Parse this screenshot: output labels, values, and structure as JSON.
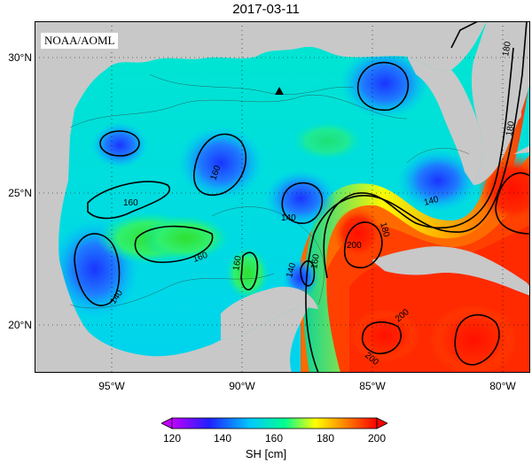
{
  "title": "2017-03-11",
  "credit": "NOAA/AOML",
  "lat_labels": [
    "30°N",
    "25°N",
    "20°N"
  ],
  "lon_labels": [
    "95°W",
    "90°W",
    "85°W",
    "80°W"
  ],
  "contour_labels": [
    "140",
    "140",
    "140",
    "140",
    "160",
    "160",
    "160",
    "160",
    "160",
    "180",
    "180",
    "180",
    "200",
    "200",
    "200"
  ],
  "colorbar": {
    "title": "SH [cm]",
    "ticks": [
      "120",
      "140",
      "160",
      "180",
      "200"
    ],
    "colors": [
      "#c000ff",
      "#2020ff",
      "#00c8ff",
      "#00ff90",
      "#ffff00",
      "#ff8000",
      "#ff0000"
    ]
  },
  "colors": {
    "land": "#c8c8c8",
    "frame": "#000000"
  },
  "icons": {
    "marker": "triangle-station-icon"
  }
}
